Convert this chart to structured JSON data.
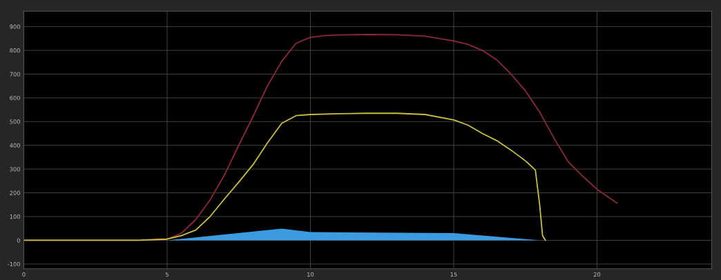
{
  "chart_data": {
    "type": "line",
    "xlim": [
      0,
      24
    ],
    "ylim": [
      -120,
      965
    ],
    "xticks": [
      0,
      5,
      10,
      15,
      20
    ],
    "yticks": [
      -100,
      0,
      100,
      200,
      300,
      400,
      500,
      600,
      700,
      800,
      900
    ],
    "grid": true,
    "series": [
      {
        "type": "area",
        "color": "#3a9be0",
        "x": [
          5,
          9,
          10,
          15,
          16,
          18,
          20.7
        ],
        "values": [
          0,
          49,
          35,
          30,
          20,
          0,
          0
        ]
      },
      {
        "color": "#8a2a3a",
        "x": [
          0,
          4,
          5,
          5.5,
          6,
          6.5,
          7,
          7.5,
          8,
          8.5,
          9,
          9.5,
          10,
          10.5,
          11,
          12,
          13,
          14,
          15,
          15.5,
          16,
          16.5,
          17,
          17.5,
          18,
          18.5,
          19,
          19.5,
          20,
          20.7
        ],
        "values": [
          0,
          0,
          5,
          30,
          87,
          170,
          275,
          400,
          522,
          650,
          754,
          830,
          855,
          862,
          865,
          867,
          866,
          860,
          840,
          825,
          800,
          760,
          700,
          630,
          540,
          430,
          330,
          270,
          215,
          157
        ]
      },
      {
        "color": "#c8c040",
        "x": [
          0,
          4,
          5,
          5.5,
          6,
          6.5,
          7,
          7.5,
          8,
          8.5,
          9,
          9.5,
          10,
          11,
          12,
          13,
          14,
          15,
          15.5,
          16,
          16.5,
          17,
          17.5,
          17.85,
          18,
          18.1,
          18.2
        ],
        "values": [
          0,
          0,
          5,
          20,
          43,
          100,
          174,
          245,
          319,
          410,
          493,
          525,
          530,
          533,
          535,
          535,
          530,
          507,
          485,
          450,
          420,
          380,
          335,
          296,
          150,
          20,
          0
        ]
      }
    ]
  }
}
